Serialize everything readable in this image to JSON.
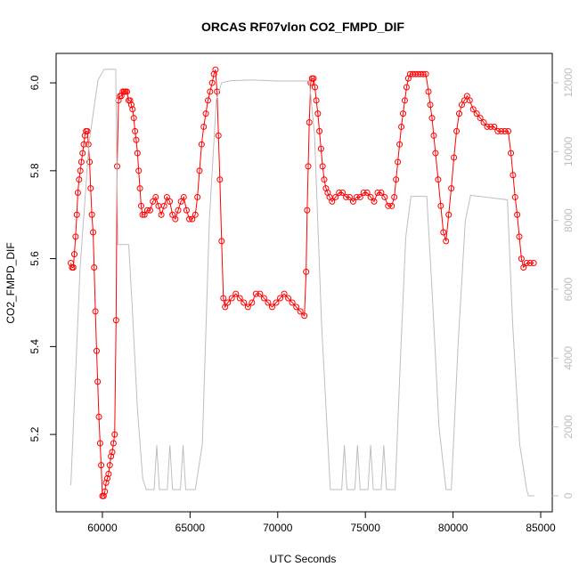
{
  "chart_data": {
    "type": "scatter",
    "title": "ORCAS RF07vlon CO2_FMPD_DIF",
    "x_label": "UTC Seconds",
    "y_label": "CO2_FMPD_DIF",
    "xlim": [
      57360,
      85660
    ],
    "ylim": [
      5.024,
      6.067
    ],
    "y2lim": [
      -465,
      12853
    ],
    "xticks": [
      60000,
      65000,
      70000,
      75000,
      80000,
      85000
    ],
    "yticks": [
      5.2,
      5.4,
      5.6,
      5.8,
      {
        "value": 6,
        "label": "6.0"
      }
    ],
    "y2ticks": [
      0,
      2000,
      4000,
      6000,
      8000,
      10000,
      12000
    ],
    "series": [
      {
        "color": "#ff0000",
        "axis": "y",
        "x": [
          58200,
          58270,
          58340,
          58400,
          58470,
          58540,
          58600,
          58670,
          58740,
          58800,
          58870,
          58940,
          59000,
          59070,
          59140,
          59200,
          59270,
          59330,
          59400,
          59470,
          59530,
          59600,
          59670,
          59730,
          59800,
          59870,
          59930,
          60000,
          60070,
          60140,
          60210,
          60280,
          60350,
          60420,
          60490,
          60560,
          60630,
          60700,
          60780,
          60840,
          60920,
          61000,
          61080,
          61160,
          61240,
          61320,
          61400,
          61500,
          61580,
          61650,
          61720,
          61790,
          61860,
          61930,
          62000,
          62070,
          62140,
          62210,
          62290,
          62400,
          62560,
          62720,
          62880,
          63040,
          63200,
          63360,
          63520,
          63680,
          63840,
          64000,
          64160,
          64320,
          64480,
          64640,
          64800,
          64960,
          65120,
          65300,
          65420,
          65540,
          65660,
          65780,
          65900,
          66020,
          66140,
          66260,
          66360,
          66450,
          66540,
          66620,
          66700,
          66800,
          66900,
          67000,
          67150,
          67380,
          67610,
          67840,
          68070,
          68300,
          68530,
          68760,
          68990,
          69220,
          69450,
          69680,
          69910,
          70140,
          70370,
          70600,
          70830,
          71060,
          71290,
          71520,
          71620,
          71680,
          71740,
          71800,
          71880,
          71960,
          72040,
          72120,
          72200,
          72290,
          72380,
          72470,
          72560,
          72650,
          72750,
          72850,
          72960,
          73100,
          73300,
          73500,
          73700,
          73900,
          74100,
          74300,
          74500,
          74700,
          74900,
          75100,
          75300,
          75500,
          75700,
          75900,
          76100,
          76300,
          76500,
          76650,
          76750,
          76850,
          76950,
          77050,
          77150,
          77250,
          77350,
          77450,
          77550,
          77700,
          77850,
          78000,
          78150,
          78300,
          78450,
          78600,
          78700,
          78800,
          78900,
          79000,
          79150,
          79300,
          79450,
          79600,
          79750,
          79900,
          80050,
          80200,
          80350,
          80500,
          80650,
          80800,
          80950,
          81150,
          81350,
          81550,
          81750,
          81950,
          82150,
          82350,
          82550,
          82750,
          82950,
          83150,
          83300,
          83420,
          83540,
          83660,
          83780,
          83900,
          84020,
          84200,
          84400,
          84600
        ],
        "values": [
          5.59,
          5.58,
          5.58,
          5.61,
          5.65,
          5.7,
          5.75,
          5.78,
          5.8,
          5.82,
          5.84,
          5.86,
          5.88,
          5.89,
          5.89,
          5.86,
          5.82,
          5.76,
          5.7,
          5.66,
          5.58,
          5.48,
          5.39,
          5.32,
          5.24,
          5.18,
          5.13,
          5.06,
          5.06,
          5.07,
          5.09,
          5.1,
          5.11,
          5.13,
          5.15,
          5.16,
          5.18,
          5.2,
          5.46,
          5.81,
          5.96,
          5.97,
          5.97,
          5.98,
          5.98,
          5.98,
          5.98,
          5.96,
          5.96,
          5.95,
          5.94,
          5.92,
          5.89,
          5.87,
          5.84,
          5.8,
          5.76,
          5.72,
          5.7,
          5.7,
          5.71,
          5.71,
          5.73,
          5.74,
          5.72,
          5.7,
          5.72,
          5.74,
          5.73,
          5.7,
          5.69,
          5.71,
          5.73,
          5.74,
          5.71,
          5.69,
          5.69,
          5.7,
          5.74,
          5.8,
          5.86,
          5.9,
          5.93,
          5.96,
          5.98,
          6.0,
          6.02,
          6.03,
          5.98,
          5.88,
          5.78,
          5.64,
          5.51,
          5.49,
          5.5,
          5.51,
          5.52,
          5.51,
          5.5,
          5.49,
          5.5,
          5.52,
          5.52,
          5.51,
          5.5,
          5.49,
          5.5,
          5.51,
          5.52,
          5.51,
          5.5,
          5.49,
          5.48,
          5.47,
          5.57,
          5.71,
          5.81,
          5.91,
          6.0,
          6.01,
          6.01,
          5.99,
          5.96,
          5.93,
          5.89,
          5.85,
          5.81,
          5.78,
          5.76,
          5.75,
          5.74,
          5.73,
          5.74,
          5.75,
          5.75,
          5.74,
          5.74,
          5.73,
          5.74,
          5.74,
          5.75,
          5.75,
          5.74,
          5.73,
          5.75,
          5.75,
          5.74,
          5.72,
          5.72,
          5.74,
          5.78,
          5.82,
          5.86,
          5.9,
          5.93,
          5.96,
          5.99,
          6.01,
          6.02,
          6.02,
          6.02,
          6.02,
          6.02,
          6.02,
          6.02,
          5.98,
          5.95,
          5.92,
          5.88,
          5.84,
          5.78,
          5.72,
          5.66,
          5.64,
          5.7,
          5.76,
          5.83,
          5.89,
          5.93,
          5.95,
          5.96,
          5.97,
          5.96,
          5.94,
          5.93,
          5.92,
          5.91,
          5.9,
          5.9,
          5.9,
          5.89,
          5.89,
          5.89,
          5.89,
          5.84,
          5.79,
          5.74,
          5.7,
          5.65,
          5.6,
          5.58,
          5.59,
          5.59,
          5.59
        ]
      },
      {
        "color": "#bebebe",
        "axis": "y2",
        "x": [
          58200,
          58730,
          59240,
          59750,
          60100,
          60760,
          60880,
          61500,
          61700,
          62000,
          62300,
          62500,
          62950,
          63100,
          63250,
          63700,
          63850,
          64000,
          64450,
          64600,
          64750,
          65300,
          65700,
          66100,
          66500,
          66800,
          67300,
          68500,
          70000,
          71800,
          72100,
          72500,
          73000,
          73650,
          73800,
          73950,
          74400,
          74550,
          74700,
          75150,
          75300,
          75450,
          75900,
          76050,
          76200,
          76700,
          77000,
          77300,
          77600,
          78500,
          78800,
          79200,
          79600,
          79900,
          80300,
          80700,
          81000,
          83100,
          83400,
          83800,
          84200,
          84300,
          84650
        ],
        "values": [
          310,
          6650,
          10270,
          12080,
          12390,
          12390,
          7300,
          7300,
          5500,
          2500,
          500,
          180,
          180,
          1470,
          180,
          180,
          1470,
          180,
          180,
          1470,
          180,
          180,
          1500,
          8000,
          11500,
          12000,
          12060,
          12080,
          12050,
          12050,
          10500,
          5000,
          180,
          180,
          1470,
          180,
          180,
          1470,
          180,
          180,
          1470,
          180,
          180,
          1470,
          180,
          180,
          4000,
          7500,
          8700,
          8700,
          6000,
          2000,
          180,
          180,
          4500,
          8000,
          8730,
          8600,
          5000,
          1500,
          180,
          0,
          0
        ]
      }
    ]
  }
}
